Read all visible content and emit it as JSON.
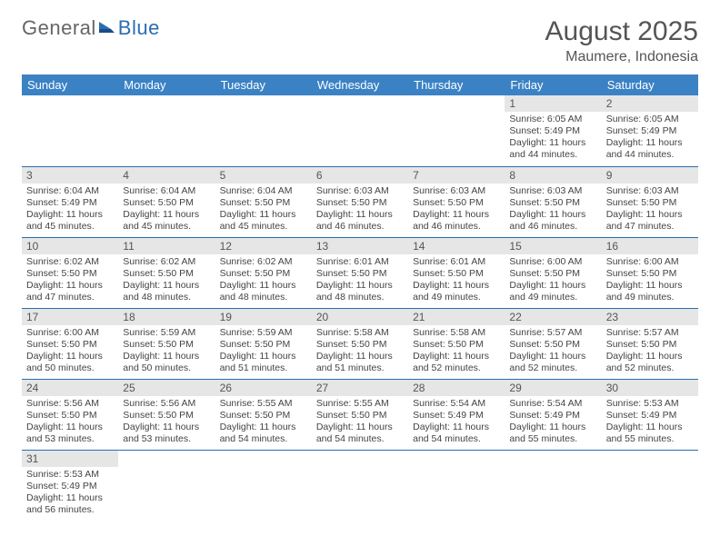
{
  "logo": {
    "text_general": "General",
    "text_blue": "Blue"
  },
  "title": "August 2025",
  "location": "Maumere, Indonesia",
  "weekday_headers": [
    "Sunday",
    "Monday",
    "Tuesday",
    "Wednesday",
    "Thursday",
    "Friday",
    "Saturday"
  ],
  "colors": {
    "header_bg": "#3b82c5",
    "header_text": "#ffffff",
    "daynum_bg": "#e6e6e6",
    "border": "#2a6db5",
    "text": "#444444"
  },
  "first_weekday_index": 5,
  "days": [
    {
      "n": 1,
      "sunrise": "6:05 AM",
      "sunset": "5:49 PM",
      "daylight": "11 hours and 44 minutes."
    },
    {
      "n": 2,
      "sunrise": "6:05 AM",
      "sunset": "5:49 PM",
      "daylight": "11 hours and 44 minutes."
    },
    {
      "n": 3,
      "sunrise": "6:04 AM",
      "sunset": "5:49 PM",
      "daylight": "11 hours and 45 minutes."
    },
    {
      "n": 4,
      "sunrise": "6:04 AM",
      "sunset": "5:50 PM",
      "daylight": "11 hours and 45 minutes."
    },
    {
      "n": 5,
      "sunrise": "6:04 AM",
      "sunset": "5:50 PM",
      "daylight": "11 hours and 45 minutes."
    },
    {
      "n": 6,
      "sunrise": "6:03 AM",
      "sunset": "5:50 PM",
      "daylight": "11 hours and 46 minutes."
    },
    {
      "n": 7,
      "sunrise": "6:03 AM",
      "sunset": "5:50 PM",
      "daylight": "11 hours and 46 minutes."
    },
    {
      "n": 8,
      "sunrise": "6:03 AM",
      "sunset": "5:50 PM",
      "daylight": "11 hours and 46 minutes."
    },
    {
      "n": 9,
      "sunrise": "6:03 AM",
      "sunset": "5:50 PM",
      "daylight": "11 hours and 47 minutes."
    },
    {
      "n": 10,
      "sunrise": "6:02 AM",
      "sunset": "5:50 PM",
      "daylight": "11 hours and 47 minutes."
    },
    {
      "n": 11,
      "sunrise": "6:02 AM",
      "sunset": "5:50 PM",
      "daylight": "11 hours and 48 minutes."
    },
    {
      "n": 12,
      "sunrise": "6:02 AM",
      "sunset": "5:50 PM",
      "daylight": "11 hours and 48 minutes."
    },
    {
      "n": 13,
      "sunrise": "6:01 AM",
      "sunset": "5:50 PM",
      "daylight": "11 hours and 48 minutes."
    },
    {
      "n": 14,
      "sunrise": "6:01 AM",
      "sunset": "5:50 PM",
      "daylight": "11 hours and 49 minutes."
    },
    {
      "n": 15,
      "sunrise": "6:00 AM",
      "sunset": "5:50 PM",
      "daylight": "11 hours and 49 minutes."
    },
    {
      "n": 16,
      "sunrise": "6:00 AM",
      "sunset": "5:50 PM",
      "daylight": "11 hours and 49 minutes."
    },
    {
      "n": 17,
      "sunrise": "6:00 AM",
      "sunset": "5:50 PM",
      "daylight": "11 hours and 50 minutes."
    },
    {
      "n": 18,
      "sunrise": "5:59 AM",
      "sunset": "5:50 PM",
      "daylight": "11 hours and 50 minutes."
    },
    {
      "n": 19,
      "sunrise": "5:59 AM",
      "sunset": "5:50 PM",
      "daylight": "11 hours and 51 minutes."
    },
    {
      "n": 20,
      "sunrise": "5:58 AM",
      "sunset": "5:50 PM",
      "daylight": "11 hours and 51 minutes."
    },
    {
      "n": 21,
      "sunrise": "5:58 AM",
      "sunset": "5:50 PM",
      "daylight": "11 hours and 52 minutes."
    },
    {
      "n": 22,
      "sunrise": "5:57 AM",
      "sunset": "5:50 PM",
      "daylight": "11 hours and 52 minutes."
    },
    {
      "n": 23,
      "sunrise": "5:57 AM",
      "sunset": "5:50 PM",
      "daylight": "11 hours and 52 minutes."
    },
    {
      "n": 24,
      "sunrise": "5:56 AM",
      "sunset": "5:50 PM",
      "daylight": "11 hours and 53 minutes."
    },
    {
      "n": 25,
      "sunrise": "5:56 AM",
      "sunset": "5:50 PM",
      "daylight": "11 hours and 53 minutes."
    },
    {
      "n": 26,
      "sunrise": "5:55 AM",
      "sunset": "5:50 PM",
      "daylight": "11 hours and 54 minutes."
    },
    {
      "n": 27,
      "sunrise": "5:55 AM",
      "sunset": "5:50 PM",
      "daylight": "11 hours and 54 minutes."
    },
    {
      "n": 28,
      "sunrise": "5:54 AM",
      "sunset": "5:49 PM",
      "daylight": "11 hours and 54 minutes."
    },
    {
      "n": 29,
      "sunrise": "5:54 AM",
      "sunset": "5:49 PM",
      "daylight": "11 hours and 55 minutes."
    },
    {
      "n": 30,
      "sunrise": "5:53 AM",
      "sunset": "5:49 PM",
      "daylight": "11 hours and 55 minutes."
    },
    {
      "n": 31,
      "sunrise": "5:53 AM",
      "sunset": "5:49 PM",
      "daylight": "11 hours and 56 minutes."
    }
  ]
}
